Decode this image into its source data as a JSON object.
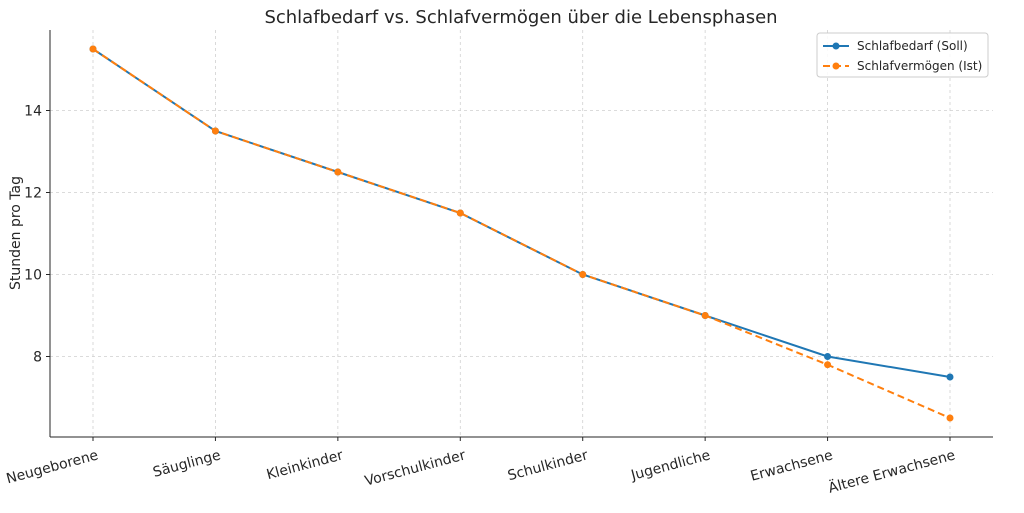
{
  "chart_data": {
    "type": "line",
    "title": "Schlafbedarf vs. Schlafvermögen über die Lebensphasen",
    "xlabel": "",
    "ylabel": "Stunden pro Tag",
    "categories": [
      "Neugeborene",
      "Säuglinge",
      "Kleinkinder",
      "Vorschulkinder",
      "Schulkinder",
      "Jugendliche",
      "Erwachsene",
      "Ältere Erwachsene"
    ],
    "ylim": [
      6.0,
      16.0
    ],
    "yticks": [
      8,
      10,
      12,
      14
    ],
    "grid": true,
    "legend_position": "top-right",
    "series": [
      {
        "name": "Schlafbedarf (Soll)",
        "values": [
          15.5,
          13.5,
          12.5,
          11.5,
          10.0,
          9.0,
          8.0,
          7.5
        ],
        "color": "#1f77b4",
        "style": "solid"
      },
      {
        "name": "Schlafvermögen (Ist)",
        "values": [
          15.5,
          13.5,
          12.5,
          11.5,
          10.0,
          9.0,
          7.8,
          6.5
        ],
        "color": "#ff7f0e",
        "style": "dashed"
      }
    ]
  }
}
